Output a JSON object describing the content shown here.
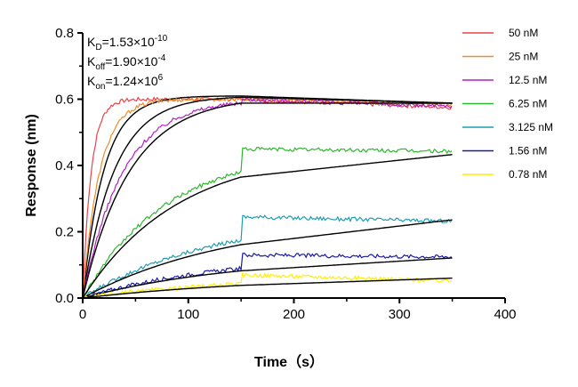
{
  "chart_data": {
    "type": "line",
    "title": "",
    "xlabel": "Time（s）",
    "ylabel": "Response (nm)",
    "xlim": [
      0,
      400
    ],
    "ylim": [
      0,
      0.8
    ],
    "x_ticks": [
      0,
      100,
      200,
      300,
      400
    ],
    "y_ticks": [
      0.0,
      0.2,
      0.4,
      0.6,
      0.8
    ],
    "x_tick_labels": [
      "0",
      "100",
      "200",
      "300",
      "400"
    ],
    "y_tick_labels": [
      "0.0",
      "0.2",
      "0.4",
      "0.6",
      "0.8"
    ],
    "grid": false,
    "legend_position": "right",
    "fit_line_color": "#000000",
    "kinetics": {
      "kd": {
        "symbol": "K",
        "sub": "D",
        "value": "=1.53×10",
        "exp": "-10"
      },
      "koff": {
        "symbol": "K",
        "sub": "off",
        "value": "=1.90×10",
        "exp": "-4"
      },
      "kon": {
        "symbol": "K",
        "sub": "on",
        "value": "=1.24×10",
        "exp": "6"
      }
    },
    "association_end": 150,
    "time_end": 350,
    "series": [
      {
        "name": "50 nM",
        "color": "#e8434a",
        "plateau": 0.6,
        "end": 0.575,
        "fit_end": 0.588,
        "tau": 8,
        "fit_tau": 20
      },
      {
        "name": "25 nM",
        "color": "#f28c28",
        "plateau": 0.6,
        "end": 0.585,
        "fit_end": 0.588,
        "tau": 16,
        "fit_tau": 30
      },
      {
        "name": "12.5 nM",
        "color": "#b41fc4",
        "plateau": 0.6,
        "end": 0.578,
        "fit_end": 0.588,
        "tau": 38,
        "fit_tau": 45
      },
      {
        "name": "6.25 nM",
        "color": "#2eb82e",
        "plateau": 0.45,
        "end": 0.443,
        "fit_end": 0.433,
        "tau": 80,
        "fit_tau": 90
      },
      {
        "name": "3.125 nM",
        "color": "#1e9fb0",
        "plateau": 0.245,
        "end": 0.232,
        "fit_end": 0.236,
        "tau": 120,
        "fit_tau": 140
      },
      {
        "name": "1.56 nM",
        "color": "#1a1aa8",
        "plateau": 0.13,
        "end": 0.124,
        "fit_end": 0.121,
        "tau": 130,
        "fit_tau": 150
      },
      {
        "name": "0.78 nM",
        "color": "#ffee00",
        "plateau": 0.07,
        "end": 0.052,
        "fit_end": 0.06,
        "tau": 160,
        "fit_tau": 190
      }
    ]
  }
}
